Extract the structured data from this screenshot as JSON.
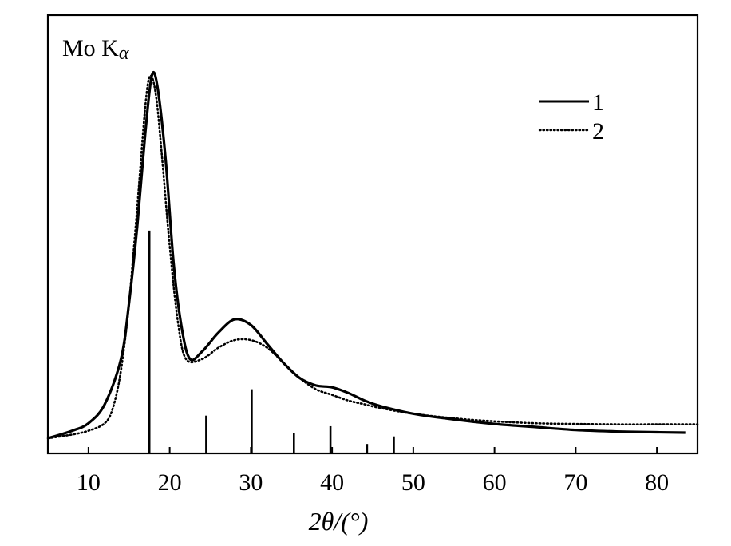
{
  "chart_data": {
    "type": "line",
    "title": "",
    "annotation": "Mo K",
    "annotation_subscript": "α",
    "xlabel": "2θ/(°)",
    "ylabel": "",
    "xlim": [
      5,
      85
    ],
    "ylim": [
      0,
      1
    ],
    "x_ticks": [
      10,
      20,
      30,
      40,
      50,
      60,
      70,
      80
    ],
    "grid": false,
    "legend_position": "top-right",
    "series": [
      {
        "name": "1",
        "style": "solid",
        "points": [
          [
            5,
            0.04
          ],
          [
            8,
            0.06
          ],
          [
            10,
            0.08
          ],
          [
            12,
            0.13
          ],
          [
            14,
            0.25
          ],
          [
            15,
            0.4
          ],
          [
            16,
            0.6
          ],
          [
            17,
            0.85
          ],
          [
            17.8,
            1.0
          ],
          [
            18.5,
            0.97
          ],
          [
            19.5,
            0.78
          ],
          [
            20.5,
            0.5
          ],
          [
            21.5,
            0.33
          ],
          [
            22.5,
            0.25
          ],
          [
            24,
            0.27
          ],
          [
            26,
            0.32
          ],
          [
            28,
            0.355
          ],
          [
            30,
            0.34
          ],
          [
            32,
            0.29
          ],
          [
            34,
            0.24
          ],
          [
            36,
            0.2
          ],
          [
            38,
            0.18
          ],
          [
            40,
            0.175
          ],
          [
            42,
            0.16
          ],
          [
            44,
            0.14
          ],
          [
            46,
            0.125
          ],
          [
            50,
            0.105
          ],
          [
            55,
            0.09
          ],
          [
            60,
            0.078
          ],
          [
            65,
            0.07
          ],
          [
            70,
            0.062
          ],
          [
            75,
            0.058
          ],
          [
            80,
            0.056
          ],
          [
            83.5,
            0.055
          ]
        ]
      },
      {
        "name": "2",
        "style": "dotted",
        "points": [
          [
            5,
            0.04
          ],
          [
            8,
            0.05
          ],
          [
            10,
            0.06
          ],
          [
            12,
            0.08
          ],
          [
            13,
            0.12
          ],
          [
            14,
            0.22
          ],
          [
            15,
            0.4
          ],
          [
            16,
            0.65
          ],
          [
            17,
            0.92
          ],
          [
            17.6,
            1.0
          ],
          [
            18.3,
            0.95
          ],
          [
            19,
            0.8
          ],
          [
            20,
            0.55
          ],
          [
            21,
            0.35
          ],
          [
            22,
            0.25
          ],
          [
            24,
            0.25
          ],
          [
            26,
            0.28
          ],
          [
            28,
            0.3
          ],
          [
            30,
            0.3
          ],
          [
            32,
            0.28
          ],
          [
            34,
            0.24
          ],
          [
            36,
            0.2
          ],
          [
            38,
            0.17
          ],
          [
            40,
            0.155
          ],
          [
            42,
            0.14
          ],
          [
            44,
            0.13
          ],
          [
            46,
            0.12
          ],
          [
            50,
            0.105
          ],
          [
            55,
            0.093
          ],
          [
            60,
            0.085
          ],
          [
            65,
            0.08
          ],
          [
            70,
            0.078
          ],
          [
            75,
            0.077
          ],
          [
            80,
            0.077
          ],
          [
            85,
            0.077
          ]
        ]
      }
    ],
    "reference_lines": [
      {
        "x": 17.5,
        "height": 0.59
      },
      {
        "x": 24.5,
        "height": 0.1
      },
      {
        "x": 30.1,
        "height": 0.17
      },
      {
        "x": 35.3,
        "height": 0.055
      },
      {
        "x": 39.8,
        "height": 0.072
      },
      {
        "x": 44.3,
        "height": 0.025
      },
      {
        "x": 47.6,
        "height": 0.045
      }
    ]
  }
}
